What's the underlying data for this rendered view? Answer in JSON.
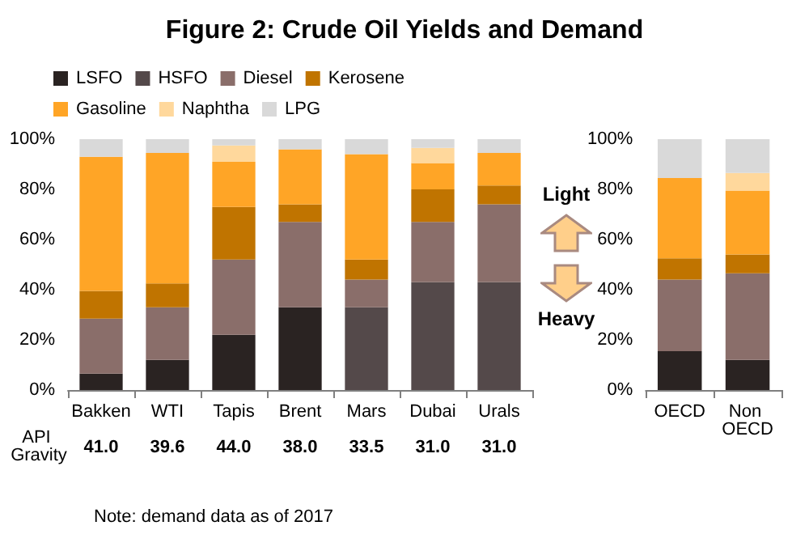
{
  "chart_data": [
    {
      "type": "bar",
      "title": "Figure 2: Crude Oil Yields and Demand",
      "stacked": true,
      "legend": "top",
      "grid": false,
      "categories": [
        "Bakken",
        "WTI",
        "Tapis",
        "Brent",
        "Mars",
        "Dubai",
        "Urals"
      ],
      "ylim": [
        0,
        100
      ],
      "yticks": [
        {
          "value": 0,
          "label": "0%"
        },
        {
          "value": 20,
          "label": "20%"
        },
        {
          "value": 40,
          "label": "40%"
        },
        {
          "value": 60,
          "label": "60%"
        },
        {
          "value": 80,
          "label": "80%"
        },
        {
          "value": 100,
          "label": "100%"
        }
      ],
      "series": [
        {
          "name": "LSFO",
          "color": "#2a2322",
          "values": [
            6.5,
            12,
            22,
            33,
            0,
            0,
            0
          ]
        },
        {
          "name": "HSFO",
          "color": "#54494a",
          "values": [
            0,
            0,
            0,
            0,
            33,
            43,
            43
          ]
        },
        {
          "name": "Diesel",
          "color": "#8a6e6a",
          "values": [
            22,
            21,
            30,
            34,
            11,
            24,
            31
          ]
        },
        {
          "name": "Kerosene",
          "color": "#c07400",
          "values": [
            11,
            9.5,
            21,
            7,
            8,
            13,
            7.5
          ]
        },
        {
          "name": "Gasoline",
          "color": "#ffa526",
          "values": [
            53.5,
            52,
            18,
            22,
            42,
            10.5,
            13
          ]
        },
        {
          "name": "Naphtha",
          "color": "#ffd89c",
          "values": [
            0,
            0,
            6.5,
            0,
            0,
            6,
            0
          ]
        },
        {
          "name": "LPG",
          "color": "#d9d9d9",
          "values": [
            7,
            5.5,
            2.5,
            4,
            6,
            3.5,
            5.5
          ]
        }
      ],
      "annotations": [
        "API Gravity",
        "41.0",
        "39.6",
        "44.0",
        "38.0",
        "33.5",
        "31.0",
        "31.0",
        "Light",
        "Heavy",
        "Note: demand data as of 2017"
      ]
    },
    {
      "type": "bar",
      "stacked": true,
      "grid": false,
      "categories": [
        "OECD",
        "Non OECD"
      ],
      "ylim": [
        0,
        100
      ],
      "yticks": [
        {
          "value": 0,
          "label": "0%"
        },
        {
          "value": 20,
          "label": "20%"
        },
        {
          "value": 40,
          "label": "40%"
        },
        {
          "value": 60,
          "label": "60%"
        },
        {
          "value": 80,
          "label": "80%"
        },
        {
          "value": 100,
          "label": "100%"
        }
      ],
      "series": [
        {
          "color": "#2a2322",
          "values": [
            15.5,
            12
          ]
        },
        {
          "color": "#8a6e6a",
          "values": [
            28.5,
            34.5
          ]
        },
        {
          "color": "#c07400",
          "values": [
            8.5,
            7.5
          ]
        },
        {
          "color": "#ffa526",
          "values": [
            32,
            25.5
          ]
        },
        {
          "color": "#ffd89c",
          "values": [
            0,
            7
          ]
        },
        {
          "color": "#d9d9d9",
          "values": [
            15.5,
            13.5
          ]
        }
      ]
    }
  ]
}
